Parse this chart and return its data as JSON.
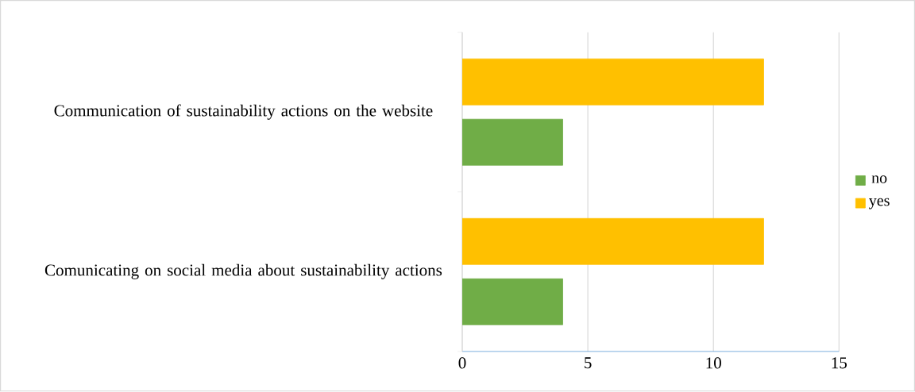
{
  "chart_data": {
    "type": "bar",
    "orientation": "horizontal",
    "categories": [
      "Communication of sustainability actions on the website",
      "Comunicating on social media about sustainability actions"
    ],
    "series": [
      {
        "name": "no",
        "color": "#70ad47",
        "values": [
          4,
          4
        ]
      },
      {
        "name": "yes",
        "color": "#ffc000",
        "values": [
          12,
          12
        ]
      }
    ],
    "xlim": [
      0,
      15
    ],
    "xticks": [
      0,
      5,
      10,
      15
    ],
    "grid": "x",
    "legend": "right"
  }
}
